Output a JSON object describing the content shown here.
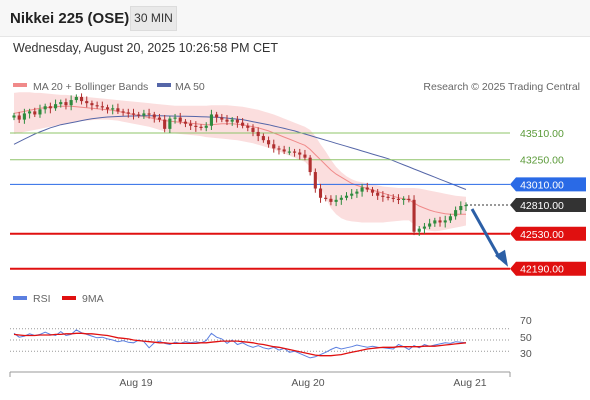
{
  "header": {
    "title": "Nikkei 225 (OSE)",
    "timeframe": "30 MIN",
    "datetime": "Wednesday, August 20, 2025 10:26:58 PM CET"
  },
  "legend": {
    "bollinger": "MA 20 + Bollinger Bands",
    "ma50": "MA 50",
    "credit": "Research © 2025 Trading Central",
    "rsi": "RSI",
    "rsi_ma": "9MA"
  },
  "colors": {
    "candle_up": "#2e8b3e",
    "candle_down": "#b03030",
    "bollinger": "#f08a8a",
    "bollinger_band": "#fbdede",
    "ma50": "#5566a8",
    "resistance": "#8fc46a",
    "pivot": "#2a6ae6",
    "support": "#e01010",
    "current": "#333333",
    "arrow": "#2c5fa6",
    "rsi": "#5b7fe0",
    "rsi_ma": "#e01010"
  },
  "chart_data": [
    {
      "type": "candlestick",
      "x_labels": [
        "Aug 19",
        "Aug 20",
        "Aug 21"
      ],
      "ylim": [
        42100,
        43850
      ],
      "levels": [
        {
          "value": 43510,
          "label": "43510.00",
          "kind": "resistance"
        },
        {
          "value": 43250,
          "label": "43250.00",
          "kind": "resistance"
        },
        {
          "value": 43010,
          "label": "43010.00",
          "kind": "pivot"
        },
        {
          "value": 42810,
          "label": "42810.00",
          "kind": "current"
        },
        {
          "value": 42530,
          "label": "42530.00",
          "kind": "support"
        },
        {
          "value": 42190,
          "label": "42190.00",
          "kind": "support"
        }
      ],
      "close": [
        43680,
        43640,
        43700,
        43720,
        43690,
        43740,
        43770,
        43750,
        43790,
        43810,
        43780,
        43830,
        43860,
        43820,
        43800,
        43780,
        43770,
        43760,
        43740,
        43750,
        43720,
        43710,
        43700,
        43690,
        43680,
        43700,
        43690,
        43660,
        43640,
        43550,
        43650,
        43660,
        43620,
        43600,
        43580,
        43570,
        43560,
        43580,
        43690,
        43660,
        43640,
        43620,
        43640,
        43610,
        43580,
        43560,
        43520,
        43480,
        43440,
        43400,
        43360,
        43350,
        43330,
        43330,
        43320,
        43300,
        43270,
        43130,
        42970,
        42880,
        42870,
        42840,
        42860,
        42880,
        42900,
        42920,
        42940,
        42980,
        42960,
        42930,
        42900,
        42890,
        42880,
        42870,
        42860,
        42870,
        42860,
        42550,
        42580,
        42600,
        42630,
        42660,
        42640,
        42660,
        42700,
        42760,
        42800,
        42810
      ],
      "bollinger_mid": [
        43700,
        43710,
        43720,
        43730,
        43740,
        43750,
        43755,
        43760,
        43765,
        43770,
        43770,
        43770,
        43765,
        43760,
        43755,
        43750,
        43745,
        43740,
        43735,
        43730,
        43720,
        43710,
        43700,
        43690,
        43680,
        43670,
        43660,
        43650,
        43640,
        43630,
        43625,
        43620,
        43615,
        43610,
        43605,
        43600,
        43595,
        43590,
        43590,
        43595,
        43600,
        43600,
        43600,
        43595,
        43590,
        43580,
        43570,
        43560,
        43545,
        43530,
        43510,
        43490,
        43470,
        43450,
        43430,
        43410,
        43390,
        43350,
        43300,
        43250,
        43200,
        43150,
        43110,
        43080,
        43050,
        43020,
        43000,
        42985,
        42970,
        42955,
        42940,
        42925,
        42910,
        42895,
        42880,
        42870,
        42860,
        42830,
        42800,
        42780,
        42760,
        42745,
        42735,
        42725,
        42720,
        42720,
        42720,
        42720
      ],
      "bollinger_upper": [
        43900,
        43905,
        43905,
        43905,
        43900,
        43900,
        43895,
        43890,
        43885,
        43880,
        43880,
        43875,
        43870,
        43865,
        43860,
        43855,
        43850,
        43845,
        43840,
        43835,
        43830,
        43825,
        43820,
        43815,
        43810,
        43805,
        43800,
        43795,
        43790,
        43785,
        43780,
        43775,
        43775,
        43775,
        43775,
        43775,
        43775,
        43775,
        43780,
        43780,
        43780,
        43780,
        43775,
        43770,
        43765,
        43755,
        43745,
        43735,
        43720,
        43705,
        43690,
        43670,
        43650,
        43630,
        43610,
        43590,
        43570,
        43540,
        43480,
        43400,
        43330,
        43250,
        43180,
        43130,
        43090,
        43060,
        43040,
        43030,
        43020,
        43010,
        43000,
        42990,
        42985,
        42980,
        42975,
        42975,
        42975,
        42975,
        42970,
        42960,
        42950,
        42940,
        42930,
        42920,
        42910,
        42900,
        42895,
        42890
      ],
      "bollinger_lower": [
        43500,
        43510,
        43520,
        43530,
        43540,
        43550,
        43560,
        43570,
        43580,
        43590,
        43600,
        43610,
        43620,
        43625,
        43630,
        43635,
        43640,
        43640,
        43640,
        43635,
        43630,
        43620,
        43610,
        43600,
        43590,
        43580,
        43570,
        43555,
        43540,
        43525,
        43515,
        43505,
        43500,
        43495,
        43490,
        43485,
        43480,
        43470,
        43465,
        43460,
        43455,
        43450,
        43445,
        43440,
        43430,
        43420,
        43410,
        43395,
        43380,
        43365,
        43350,
        43330,
        43310,
        43290,
        43270,
        43250,
        43230,
        43180,
        43100,
        42990,
        42880,
        42780,
        42720,
        42680,
        42660,
        42650,
        42645,
        42640,
        42640,
        42640,
        42640,
        42640,
        42645,
        42650,
        42655,
        42660,
        42660,
        42620,
        42590,
        42570,
        42560,
        42555,
        42560,
        42570,
        42580,
        42590,
        42600,
        42610
      ],
      "ma50": [
        43400,
        43425,
        43450,
        43475,
        43500,
        43520,
        43540,
        43560,
        43575,
        43590,
        43600,
        43610,
        43620,
        43630,
        43640,
        43648,
        43655,
        43660,
        43665,
        43668,
        43670,
        43672,
        43674,
        43675,
        43676,
        43677,
        43678,
        43678,
        43677,
        43676,
        43675,
        43674,
        43673,
        43672,
        43671,
        43670,
        43668,
        43666,
        43664,
        43662,
        43660,
        43655,
        43650,
        43645,
        43640,
        43630,
        43620,
        43610,
        43600,
        43590,
        43578,
        43566,
        43554,
        43542,
        43530,
        43515,
        43500,
        43485,
        43470,
        43455,
        43440,
        43425,
        43410,
        43395,
        43380,
        43365,
        43350,
        43335,
        43320,
        43305,
        43290,
        43275,
        43260,
        43240,
        43220,
        43200,
        43180,
        43160,
        43140,
        43120,
        43100,
        43080,
        43060,
        43040,
        43020,
        43000,
        42980,
        42960
      ]
    },
    {
      "type": "line",
      "ylim": [
        0,
        100
      ],
      "y_ticks": [
        "70",
        "50",
        "30"
      ],
      "series": [
        {
          "name": "RSI",
          "values": [
            62,
            55,
            57,
            61,
            58,
            60,
            64,
            60,
            58,
            65,
            58,
            60,
            68,
            63,
            60,
            57,
            54,
            55,
            52,
            50,
            47,
            49,
            46,
            45,
            50,
            47,
            36,
            45,
            48,
            44,
            42,
            46,
            44,
            47,
            45,
            47,
            45,
            49,
            62,
            55,
            52,
            44,
            50,
            42,
            45,
            40,
            37,
            40,
            36,
            34,
            37,
            32,
            35,
            28,
            30,
            26,
            22,
            18,
            20,
            24,
            28,
            33,
            37,
            34,
            36,
            38,
            41,
            39,
            37,
            39,
            37,
            36,
            35,
            34,
            42,
            38,
            33,
            40,
            36,
            42,
            39,
            41,
            43,
            45,
            44,
            47,
            46,
            45
          ]
        },
        {
          "name": "9MA",
          "values": [
            60,
            59,
            58,
            58,
            58,
            59,
            59,
            59,
            60,
            60,
            61,
            61,
            62,
            62,
            61,
            61,
            60,
            59,
            58,
            56,
            54,
            53,
            52,
            50,
            49,
            48,
            47,
            46,
            45,
            45,
            44,
            44,
            44,
            44,
            44,
            44,
            45,
            45,
            46,
            47,
            48,
            48,
            48,
            48,
            47,
            46,
            45,
            43,
            42,
            40,
            38,
            37,
            35,
            33,
            31,
            29,
            27,
            25,
            23,
            22,
            22,
            22,
            23,
            24,
            26,
            28,
            30,
            32,
            34,
            35,
            36,
            37,
            37,
            37,
            38,
            38,
            38,
            38,
            38,
            39,
            39,
            39,
            40,
            41,
            42,
            43,
            44,
            45
          ]
        }
      ]
    }
  ]
}
